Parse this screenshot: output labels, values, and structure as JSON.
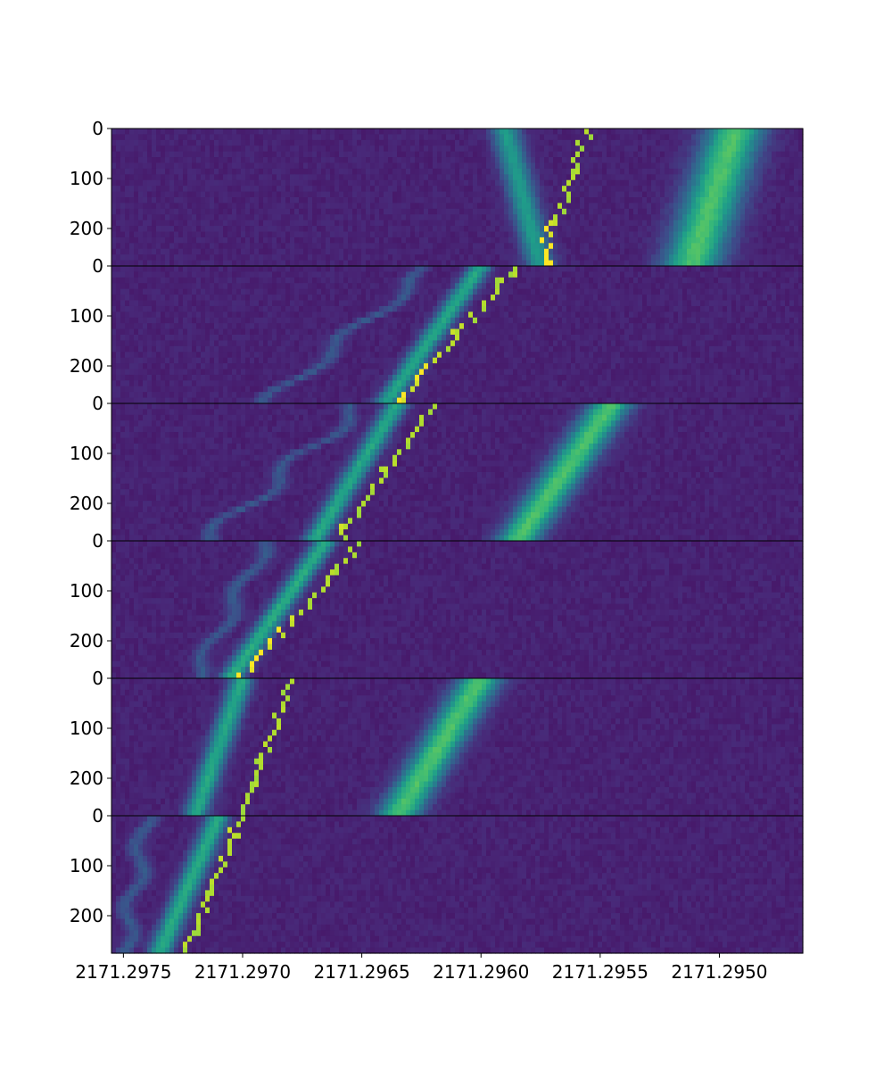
{
  "chart_data": {
    "type": "heatmap",
    "title": "",
    "xlabel": "",
    "ylabel": "",
    "colormap": "viridis",
    "x_axis": {
      "inverted": true,
      "xlim": [
        2171.29755,
        2171.29465
      ],
      "ticks": [
        2171.2975,
        2171.297,
        2171.2965,
        2171.296,
        2171.2955,
        2171.295
      ],
      "tick_labels": [
        "2171.2975",
        "2171.2970",
        "2171.2965",
        "2171.2960",
        "2171.2955",
        "2171.2950"
      ]
    },
    "y_axis": {
      "ylim": [
        0,
        275
      ],
      "ticks": [
        0,
        100,
        200
      ],
      "tick_labels": [
        "0",
        "100",
        "200"
      ]
    },
    "panels": [
      {
        "name": "panel-1",
        "traces": [
          {
            "kind": "band",
            "x_top": 2171.29493,
            "x_bottom": 2171.29512,
            "width": 0.00012,
            "peak": 0.62
          },
          {
            "kind": "band",
            "x_top": 2171.2959,
            "x_bottom": 2171.29575,
            "width": 6e-05,
            "peak": 0.45
          },
          {
            "kind": "dots",
            "x_top": 2171.29555,
            "x_bottom": 2171.29575,
            "jitter": 3e-05
          }
        ]
      },
      {
        "name": "panel-2",
        "traces": [
          {
            "kind": "band",
            "x_top": 2171.296,
            "x_bottom": 2171.2964,
            "width": 5e-05,
            "peak": 0.5
          },
          {
            "kind": "dots",
            "x_top": 2171.29585,
            "x_bottom": 2171.29635,
            "jitter": 2e-05
          },
          {
            "kind": "faint",
            "x_top": 2171.2962,
            "x_bottom": 2171.2969,
            "wiggle": 4e-05
          }
        ]
      },
      {
        "name": "panel-3",
        "traces": [
          {
            "kind": "band",
            "x_top": 2171.29545,
            "x_bottom": 2171.29585,
            "width": 9e-05,
            "peak": 0.62
          },
          {
            "kind": "band",
            "x_top": 2171.29635,
            "x_bottom": 2171.2967,
            "width": 5e-05,
            "peak": 0.5
          },
          {
            "kind": "dots",
            "x_top": 2171.2962,
            "x_bottom": 2171.2966,
            "jitter": 2e-05
          },
          {
            "kind": "faint",
            "x_top": 2171.2965,
            "x_bottom": 2171.29715,
            "wiggle": 5e-05
          }
        ]
      },
      {
        "name": "panel-4",
        "traces": [
          {
            "kind": "band",
            "x_top": 2171.29665,
            "x_bottom": 2171.29705,
            "width": 5e-05,
            "peak": 0.52
          },
          {
            "kind": "dots",
            "x_top": 2171.2965,
            "x_bottom": 2171.297,
            "jitter": 2e-05
          },
          {
            "kind": "faint",
            "x_top": 2171.2969,
            "x_bottom": 2171.2972,
            "wiggle": 3e-05
          }
        ]
      },
      {
        "name": "panel-5",
        "traces": [
          {
            "kind": "band",
            "x_top": 2171.296,
            "x_bottom": 2171.29635,
            "width": 9e-05,
            "peak": 0.62
          },
          {
            "kind": "band",
            "x_top": 2171.297,
            "x_bottom": 2171.2972,
            "width": 5e-05,
            "peak": 0.5
          },
          {
            "kind": "dots",
            "x_top": 2171.2968,
            "x_bottom": 2171.297,
            "jitter": 2e-05
          }
        ]
      },
      {
        "name": "panel-6",
        "traces": [
          {
            "kind": "band",
            "x_top": 2171.2971,
            "x_bottom": 2171.29735,
            "width": 5e-05,
            "peak": 0.52
          },
          {
            "kind": "dots",
            "x_top": 2171.297,
            "x_bottom": 2171.29725,
            "jitter": 2e-05
          },
          {
            "kind": "faint",
            "x_top": 2171.2974,
            "x_bottom": 2171.2975,
            "wiggle": 3e-05
          }
        ]
      }
    ]
  }
}
